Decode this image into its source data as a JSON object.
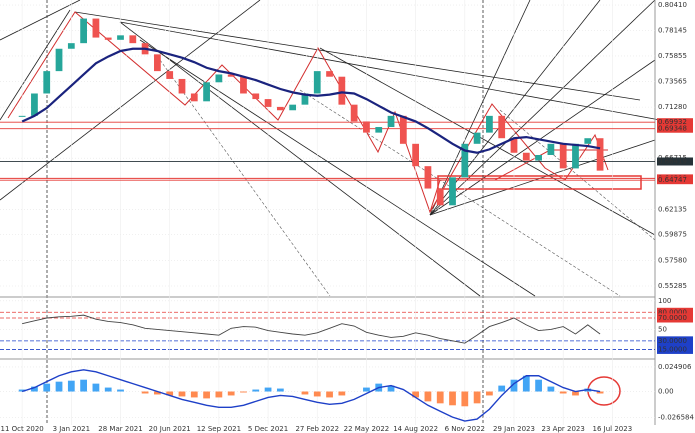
{
  "chart_data": {
    "type": "candlestick",
    "xlim": [
      -5.4,
      154.4
    ],
    "xticks": [
      {
        "value": 0,
        "label": "11 Oct 2020"
      },
      {
        "value": 12,
        "label": "3 Jan 2021"
      },
      {
        "value": 24,
        "label": "28 Mar 2021"
      },
      {
        "value": 36,
        "label": "20 Jun 2021"
      },
      {
        "value": 48,
        "label": "12 Sep 2021"
      },
      {
        "value": 60,
        "label": "5 Dec 2021"
      },
      {
        "value": 72,
        "label": "27 Feb 2022"
      },
      {
        "value": 84,
        "label": "22 May 2022"
      },
      {
        "value": 96,
        "label": "14 Aug 2022"
      },
      {
        "value": 108,
        "label": "6 Nov 2022"
      },
      {
        "value": 120,
        "label": "29 Jan 2023"
      },
      {
        "value": 132,
        "label": "23 Apr 2023"
      },
      {
        "value": 144,
        "label": "16 Jul 2023"
      }
    ],
    "ylim": [
      0.5439,
      0.8086
    ],
    "yticks": [
      {
        "value": 0.8041,
        "label": "0.80410"
      },
      0.78145,
      0.75855,
      0.73565,
      {
        "value": 0.7128,
        "label": "0.71280"
      },
      0.66715,
      0.62135,
      0.59875,
      {
        "value": 0.5758,
        "label": "0.57580"
      },
      0.55285
    ],
    "candles": {
      "x": [
        0,
        3,
        6,
        9,
        12,
        15,
        18,
        21,
        24,
        27,
        30,
        33,
        36,
        39,
        42,
        45,
        48,
        51,
        54,
        57,
        60,
        63,
        66,
        69,
        72,
        75,
        78,
        81,
        84,
        87,
        90,
        93,
        96,
        99,
        102,
        105,
        108,
        111,
        114,
        117,
        120,
        123,
        126,
        129,
        132,
        135,
        138,
        141
      ],
      "close": [
        0.705,
        0.725,
        0.745,
        0.765,
        0.77,
        0.792,
        0.775,
        0.773,
        0.777,
        0.77,
        0.76,
        0.745,
        0.738,
        0.725,
        0.718,
        0.735,
        0.742,
        0.74,
        0.725,
        0.72,
        0.713,
        0.71,
        0.715,
        0.725,
        0.745,
        0.74,
        0.715,
        0.7,
        0.69,
        0.695,
        0.705,
        0.68,
        0.66,
        0.64,
        0.625,
        0.65,
        0.68,
        0.69,
        0.705,
        0.685,
        0.672,
        0.665,
        0.67,
        0.68,
        0.658,
        0.68,
        0.685,
        0.656
      ],
      "up_color": "#26a69a",
      "down_color": "#ef5350"
    },
    "moving_average": {
      "color": "#1a237e",
      "values": [
        0.7,
        0.705,
        0.712,
        0.722,
        0.732,
        0.742,
        0.752,
        0.758,
        0.763,
        0.765,
        0.765,
        0.763,
        0.76,
        0.757,
        0.753,
        0.748,
        0.745,
        0.743,
        0.74,
        0.737,
        0.733,
        0.729,
        0.726,
        0.724,
        0.723,
        0.724,
        0.726,
        0.725,
        0.72,
        0.714,
        0.708,
        0.704,
        0.7,
        0.694,
        0.687,
        0.68,
        0.674,
        0.672,
        0.675,
        0.68,
        0.685,
        0.686,
        0.684,
        0.682,
        0.68,
        0.679,
        0.678,
        0.676
      ]
    },
    "price_levels": [
      {
        "value": 0.69932,
        "color": "#e53935"
      },
      {
        "value": 0.69348,
        "color": "#e53935"
      },
      {
        "value": 0.66419,
        "color": "#263238"
      },
      {
        "value": 0.64908,
        "color": "#e53935"
      },
      {
        "value": 0.64747,
        "color": "#e53935"
      }
    ],
    "rsi": {
      "color": "#444",
      "ylim": [
        0,
        105
      ],
      "yticks": [
        100,
        {
          "value": 80,
          "label": "80.0000",
          "color": "#e53935"
        },
        {
          "value": 70,
          "label": "70.0000",
          "color": "#e53935"
        },
        50,
        {
          "value": 30,
          "label": "30.0000",
          "color": "#1e40c8"
        },
        {
          "value": 15,
          "label": "15.0000",
          "color": "#1e40c8"
        }
      ],
      "values": [
        60,
        65,
        70,
        72,
        73,
        75,
        68,
        64,
        62,
        58,
        52,
        50,
        48,
        46,
        44,
        42,
        40,
        52,
        55,
        54,
        48,
        45,
        42,
        40,
        44,
        52,
        60,
        56,
        45,
        40,
        36,
        38,
        44,
        40,
        34,
        30,
        26,
        40,
        55,
        62,
        70,
        58,
        48,
        50,
        55,
        42,
        58,
        42
      ]
    },
    "macd": {
      "ylim": [
        -0.034,
        0.032
      ],
      "yticks": [
        {
          "value": 0.024906,
          "label": "0.024906"
        },
        {
          "value": 0,
          "label": "0.00"
        },
        -0.026584
      ],
      "histogram_up_color": "#42a5f5",
      "histogram_down_color": "#ff8a50",
      "line_color": "#1e40c8",
      "histogram": [
        0.002,
        0.005,
        0.008,
        0.01,
        0.011,
        0.012,
        0.008,
        0.004,
        0.002,
        0.0,
        -0.002,
        -0.003,
        -0.004,
        -0.005,
        -0.006,
        -0.007,
        -0.006,
        -0.004,
        -0.001,
        0.002,
        0.004,
        0.003,
        0.0,
        -0.003,
        -0.005,
        -0.006,
        -0.004,
        0.0,
        0.004,
        0.008,
        0.006,
        0.0,
        -0.006,
        -0.01,
        -0.012,
        -0.014,
        -0.015,
        -0.012,
        -0.004,
        0.006,
        0.012,
        0.016,
        0.012,
        0.005,
        -0.002,
        -0.004,
        0.003,
        -0.002
      ],
      "line": [
        0.0,
        0.004,
        0.01,
        0.016,
        0.02,
        0.022,
        0.02,
        0.016,
        0.012,
        0.008,
        0.004,
        0.0,
        -0.004,
        -0.008,
        -0.011,
        -0.014,
        -0.016,
        -0.016,
        -0.014,
        -0.01,
        -0.006,
        -0.004,
        -0.005,
        -0.008,
        -0.011,
        -0.013,
        -0.012,
        -0.008,
        -0.002,
        0.004,
        0.006,
        0.002,
        -0.006,
        -0.014,
        -0.02,
        -0.026,
        -0.03,
        -0.028,
        -0.018,
        -0.004,
        0.008,
        0.016,
        0.016,
        0.01,
        0.004,
        0.0,
        0.002,
        0.0
      ]
    }
  }
}
